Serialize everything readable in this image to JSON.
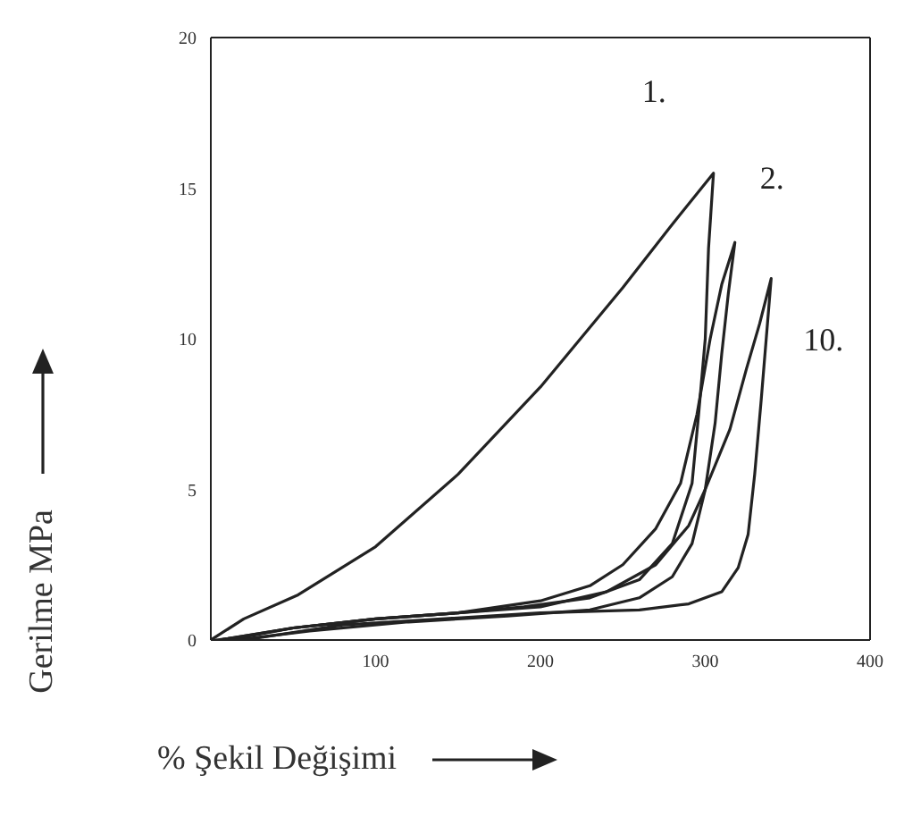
{
  "chart_data": {
    "type": "line",
    "xlabel": "% Şekil Değişimi",
    "ylabel": "Gerilme MPa",
    "xlim": [
      0,
      400
    ],
    "ylim": [
      0,
      20
    ],
    "xticks": [
      100,
      200,
      300,
      400
    ],
    "yticks": [
      0,
      5,
      10,
      15,
      20
    ],
    "grid": false,
    "marker": "none",
    "line_style": "solid",
    "series": [
      {
        "name": "1.",
        "color": "#222222",
        "x": [
          0,
          20,
          53,
          100,
          150,
          200,
          250,
          280,
          305,
          302,
          300,
          296,
          292,
          280,
          260,
          230,
          190,
          150,
          100,
          50,
          20,
          3
        ],
        "values": [
          0,
          0.7,
          1.5,
          3.1,
          5.5,
          8.4,
          11.7,
          13.8,
          15.5,
          13,
          10,
          7.5,
          5.2,
          3.2,
          2,
          1.4,
          1.1,
          0.9,
          0.7,
          0.4,
          0.1,
          0
        ]
      },
      {
        "name": "2.",
        "color": "#222222",
        "x": [
          5,
          50,
          100,
          150,
          200,
          230,
          250,
          270,
          285,
          295,
          303,
          310,
          318,
          314,
          310,
          306,
          300,
          292,
          280,
          260,
          230,
          180,
          120,
          60,
          15
        ],
        "values": [
          0,
          0.4,
          0.7,
          0.9,
          1.3,
          1.8,
          2.5,
          3.7,
          5.2,
          7.5,
          10,
          11.8,
          13.2,
          11.5,
          9.5,
          7.2,
          5,
          3.2,
          2.1,
          1.4,
          1,
          0.8,
          0.6,
          0.3,
          0
        ]
      },
      {
        "name": "10.",
        "color": "#222222",
        "x": [
          5,
          50,
          100,
          150,
          200,
          240,
          270,
          290,
          300,
          315,
          325,
          333,
          340,
          337,
          334,
          330,
          326,
          320,
          310,
          290,
          260,
          200,
          140,
          80,
          20
        ],
        "values": [
          0,
          0.4,
          0.7,
          0.9,
          1.1,
          1.6,
          2.5,
          3.8,
          5,
          7,
          9,
          10.5,
          12,
          10,
          8,
          5.5,
          3.5,
          2.4,
          1.6,
          1.2,
          1,
          0.9,
          0.7,
          0.5,
          0
        ]
      }
    ]
  }
}
